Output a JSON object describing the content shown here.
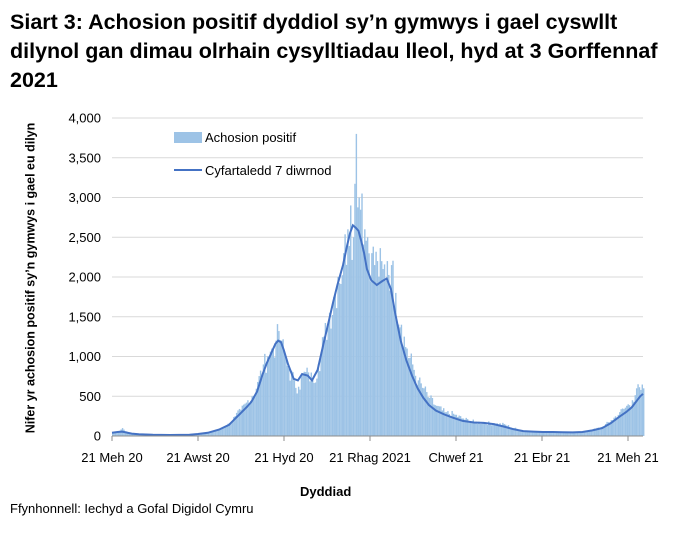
{
  "title": "Siart 3: Achosion positif dyddiol sy’n gymwys i gael cyswllt dilynol gan dimau olrhain cysylltiadau lleol, hyd at 3 Gorffennaf 2021",
  "source": "Ffynhonnell: Iechyd a Gofal Digidol Cymru",
  "colors": {
    "bars": "#9dc3e6",
    "line": "#4472c4",
    "grid": "#d9d9d9"
  },
  "chart_data": {
    "type": "bar",
    "xlabel": "Dyddiad",
    "ylabel": "Nifer yr achosion positif sy’n gymwys i gael eu dilyn",
    "ylim": [
      0,
      4000
    ],
    "yticks": [
      "0",
      "500",
      "1,000",
      "1,500",
      "2,000",
      "2,500",
      "3,000",
      "3,500",
      "4,000"
    ],
    "xticks": [
      "21 Meh 20",
      "21 Awst 20",
      "21 Hyd 20",
      "21 Rhag 2021",
      "Chwef 21",
      "21 Ebr 21",
      "21 Meh 21"
    ],
    "legend": {
      "placement": "top-left",
      "entries": [
        "Achosion positif",
        "Cyfartaledd 7 diwrnod"
      ]
    },
    "x_range": [
      "2020-06-21",
      "2021-07-03"
    ],
    "series": [
      {
        "name": "Achosion positif",
        "type": "bar",
        "points": [
          [
            "2020-06-21",
            40
          ],
          [
            "2020-06-25",
            60
          ],
          [
            "2020-06-28",
            100
          ],
          [
            "2020-07-01",
            50
          ],
          [
            "2020-07-05",
            30
          ],
          [
            "2020-07-10",
            20
          ],
          [
            "2020-07-20",
            15
          ],
          [
            "2020-08-01",
            15
          ],
          [
            "2020-08-15",
            20
          ],
          [
            "2020-08-21",
            30
          ],
          [
            "2020-08-28",
            40
          ],
          [
            "2020-09-05",
            80
          ],
          [
            "2020-09-12",
            160
          ],
          [
            "2020-09-16",
            250
          ],
          [
            "2020-09-20",
            330
          ],
          [
            "2020-09-25",
            450
          ],
          [
            "2020-09-28",
            500
          ],
          [
            "2020-10-02",
            680
          ],
          [
            "2020-10-06",
            900
          ],
          [
            "2020-10-09",
            1000
          ],
          [
            "2020-10-12",
            1100
          ],
          [
            "2020-10-15",
            1200
          ],
          [
            "2020-10-17",
            1320
          ],
          [
            "2020-10-19",
            1200
          ],
          [
            "2020-10-21",
            1050
          ],
          [
            "2020-10-24",
            850
          ],
          [
            "2020-10-28",
            700
          ],
          [
            "2020-10-31",
            620
          ],
          [
            "2020-11-03",
            780
          ],
          [
            "2020-11-07",
            800
          ],
          [
            "2020-11-10",
            720
          ],
          [
            "2020-11-14",
            900
          ],
          [
            "2020-11-18",
            1250
          ],
          [
            "2020-11-22",
            1550
          ],
          [
            "2020-11-25",
            1750
          ],
          [
            "2020-11-28",
            2000
          ],
          [
            "2020-12-02",
            2300
          ],
          [
            "2020-12-05",
            2600
          ],
          [
            "2020-12-07",
            2900
          ],
          [
            "2020-12-09",
            2500
          ],
          [
            "2020-12-11",
            3800
          ],
          [
            "2020-12-13",
            3000
          ],
          [
            "2020-12-15",
            3050
          ],
          [
            "2020-12-17",
            2600
          ],
          [
            "2020-12-19",
            2500
          ],
          [
            "2020-12-22",
            2300
          ],
          [
            "2020-12-26",
            2200
          ],
          [
            "2020-12-30",
            2100
          ],
          [
            "2021-01-02",
            2200
          ],
          [
            "2021-01-05",
            2150
          ],
          [
            "2021-01-08",
            1800
          ],
          [
            "2021-01-12",
            1400
          ],
          [
            "2021-01-16",
            1100
          ],
          [
            "2021-01-20",
            900
          ],
          [
            "2021-01-24",
            700
          ],
          [
            "2021-01-28",
            600
          ],
          [
            "2021-02-01",
            480
          ],
          [
            "2021-02-06",
            380
          ],
          [
            "2021-02-12",
            300
          ],
          [
            "2021-02-18",
            280
          ],
          [
            "2021-02-25",
            220
          ],
          [
            "2021-03-05",
            180
          ],
          [
            "2021-03-12",
            170
          ],
          [
            "2021-03-19",
            160
          ],
          [
            "2021-03-26",
            150
          ],
          [
            "2021-04-02",
            100
          ],
          [
            "2021-04-09",
            70
          ],
          [
            "2021-04-16",
            60
          ],
          [
            "2021-04-23",
            55
          ],
          [
            "2021-04-30",
            55
          ],
          [
            "2021-05-07",
            50
          ],
          [
            "2021-05-14",
            40
          ],
          [
            "2021-05-21",
            55
          ],
          [
            "2021-05-28",
            80
          ],
          [
            "2021-06-04",
            120
          ],
          [
            "2021-06-10",
            200
          ],
          [
            "2021-06-16",
            300
          ],
          [
            "2021-06-21",
            380
          ],
          [
            "2021-06-25",
            450
          ],
          [
            "2021-06-28",
            600
          ],
          [
            "2021-07-01",
            580
          ],
          [
            "2021-07-03",
            600
          ]
        ]
      },
      {
        "name": "Cyfartaledd 7 diwrnod",
        "type": "line",
        "points": [
          [
            "2020-06-21",
            40
          ],
          [
            "2020-06-25",
            50
          ],
          [
            "2020-06-28",
            55
          ],
          [
            "2020-07-01",
            45
          ],
          [
            "2020-07-05",
            30
          ],
          [
            "2020-07-10",
            22
          ],
          [
            "2020-07-20",
            15
          ],
          [
            "2020-08-01",
            12
          ],
          [
            "2020-08-15",
            15
          ],
          [
            "2020-08-21",
            25
          ],
          [
            "2020-08-28",
            40
          ],
          [
            "2020-09-05",
            80
          ],
          [
            "2020-09-12",
            140
          ],
          [
            "2020-09-16",
            210
          ],
          [
            "2020-09-20",
            280
          ],
          [
            "2020-09-25",
            370
          ],
          [
            "2020-09-28",
            430
          ],
          [
            "2020-10-02",
            560
          ],
          [
            "2020-10-06",
            780
          ],
          [
            "2020-10-09",
            920
          ],
          [
            "2020-10-12",
            1040
          ],
          [
            "2020-10-15",
            1160
          ],
          [
            "2020-10-17",
            1200
          ],
          [
            "2020-10-19",
            1180
          ],
          [
            "2020-10-21",
            1080
          ],
          [
            "2020-10-24",
            900
          ],
          [
            "2020-10-28",
            720
          ],
          [
            "2020-10-31",
            700
          ],
          [
            "2020-11-03",
            780
          ],
          [
            "2020-11-07",
            760
          ],
          [
            "2020-11-10",
            700
          ],
          [
            "2020-11-14",
            830
          ],
          [
            "2020-11-18",
            1150
          ],
          [
            "2020-11-22",
            1450
          ],
          [
            "2020-11-25",
            1680
          ],
          [
            "2020-11-28",
            1900
          ],
          [
            "2020-12-02",
            2150
          ],
          [
            "2020-12-05",
            2400
          ],
          [
            "2020-12-07",
            2550
          ],
          [
            "2020-12-09",
            2650
          ],
          [
            "2020-12-11",
            2620
          ],
          [
            "2020-12-13",
            2580
          ],
          [
            "2020-12-15",
            2450
          ],
          [
            "2020-12-17",
            2300
          ],
          [
            "2020-12-19",
            2100
          ],
          [
            "2020-12-22",
            1960
          ],
          [
            "2020-12-26",
            1900
          ],
          [
            "2020-12-30",
            1950
          ],
          [
            "2021-01-02",
            1980
          ],
          [
            "2021-01-05",
            1850
          ],
          [
            "2021-01-08",
            1550
          ],
          [
            "2021-01-12",
            1200
          ],
          [
            "2021-01-16",
            950
          ],
          [
            "2021-01-20",
            760
          ],
          [
            "2021-01-24",
            600
          ],
          [
            "2021-01-28",
            480
          ],
          [
            "2021-02-01",
            390
          ],
          [
            "2021-02-06",
            320
          ],
          [
            "2021-02-12",
            270
          ],
          [
            "2021-02-18",
            230
          ],
          [
            "2021-02-25",
            190
          ],
          [
            "2021-03-05",
            170
          ],
          [
            "2021-03-12",
            165
          ],
          [
            "2021-03-19",
            150
          ],
          [
            "2021-03-26",
            120
          ],
          [
            "2021-04-02",
            85
          ],
          [
            "2021-04-09",
            62
          ],
          [
            "2021-04-16",
            55
          ],
          [
            "2021-04-23",
            50
          ],
          [
            "2021-04-30",
            50
          ],
          [
            "2021-05-07",
            48
          ],
          [
            "2021-05-14",
            45
          ],
          [
            "2021-05-21",
            50
          ],
          [
            "2021-05-28",
            70
          ],
          [
            "2021-06-04",
            100
          ],
          [
            "2021-06-10",
            160
          ],
          [
            "2021-06-16",
            240
          ],
          [
            "2021-06-21",
            300
          ],
          [
            "2021-06-25",
            360
          ],
          [
            "2021-06-28",
            430
          ],
          [
            "2021-07-01",
            500
          ],
          [
            "2021-07-03",
            530
          ]
        ]
      }
    ]
  }
}
